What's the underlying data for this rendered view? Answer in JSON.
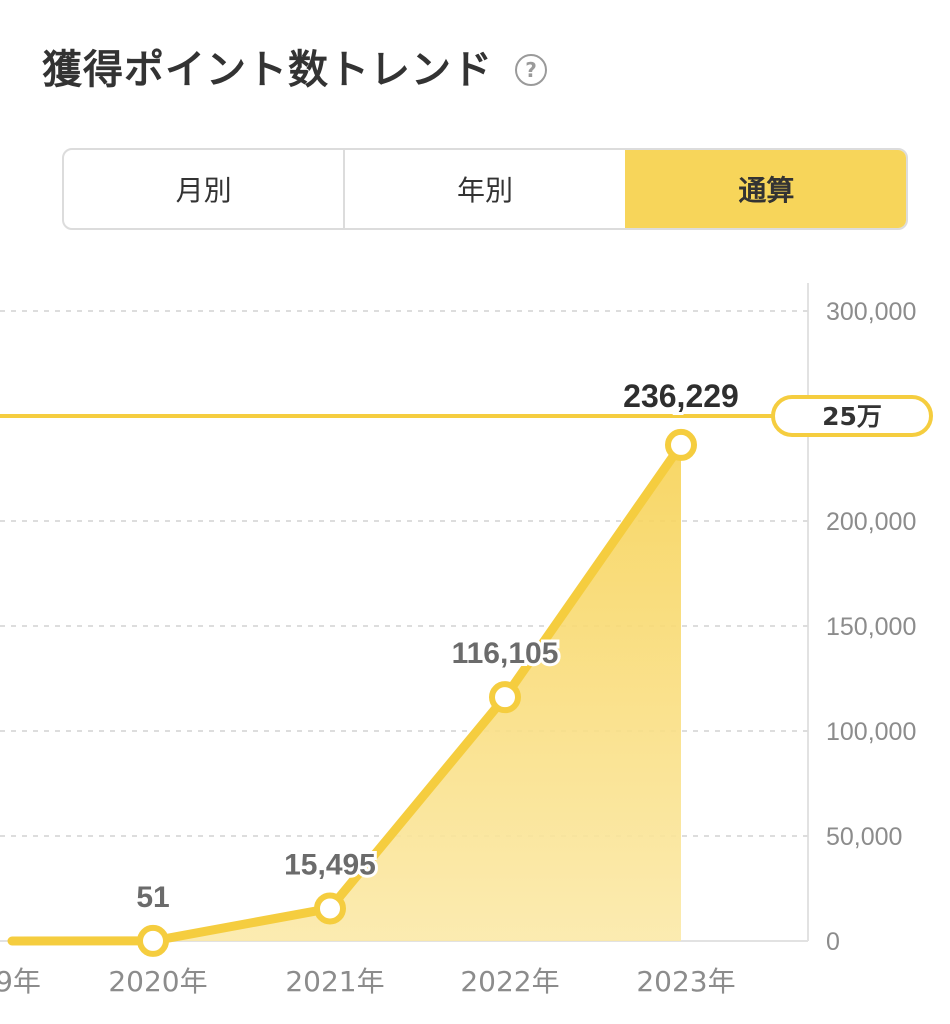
{
  "header": {
    "title": "獲得ポイント数トレンド",
    "help_icon": "question-circle-icon",
    "help_glyph": "?"
  },
  "tabs": [
    {
      "label": "月別",
      "active": false
    },
    {
      "label": "年別",
      "active": false
    },
    {
      "label": "通算",
      "active": true
    }
  ],
  "colors": {
    "accent": "#f7d55a",
    "line": "#f5cd3f",
    "text": "#333333",
    "muted": "#8c8c8c",
    "grid": "#dddddd"
  },
  "chart_data": {
    "type": "area",
    "x_tick_labels": [
      "9年",
      "2020年",
      "2021年",
      "2022年",
      "2023年"
    ],
    "points": [
      {
        "x": "9年",
        "value": 0,
        "label": ""
      },
      {
        "x": "2020年",
        "value": 51,
        "label": "51"
      },
      {
        "x": "2021年",
        "value": 15495,
        "label": "15,495"
      },
      {
        "x": "2022年",
        "value": 116105,
        "label": "116,105"
      },
      {
        "x": "2023年",
        "value": 236229,
        "label": "236,229"
      }
    ],
    "y_ticks": [
      0,
      50000,
      100000,
      150000,
      200000,
      300000
    ],
    "y_tick_labels": [
      "0",
      "50,000",
      "100,000",
      "150,000",
      "200,000",
      "300,000"
    ],
    "ylim": [
      0,
      300000
    ],
    "target": {
      "value": 250000,
      "label": "25万"
    },
    "grid": true,
    "y_axis_side": "right"
  }
}
